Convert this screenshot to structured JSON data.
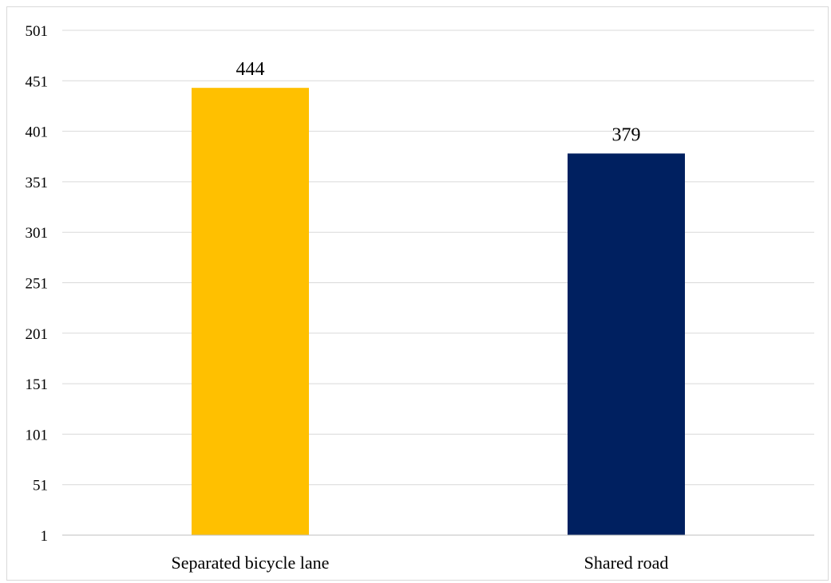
{
  "chart_data": {
    "type": "bar",
    "title": "",
    "xlabel": "",
    "ylabel": "",
    "categories": [
      "Separated bicycle lane",
      "Shared road"
    ],
    "values": [
      444,
      379
    ],
    "data_labels": [
      "444",
      "379"
    ],
    "colors": [
      "#FFC000",
      "#002060"
    ],
    "ylim": [
      1,
      501
    ],
    "yticks": [
      1,
      51,
      101,
      151,
      201,
      251,
      301,
      351,
      401,
      451,
      501
    ],
    "grid": true,
    "legend": "none"
  }
}
